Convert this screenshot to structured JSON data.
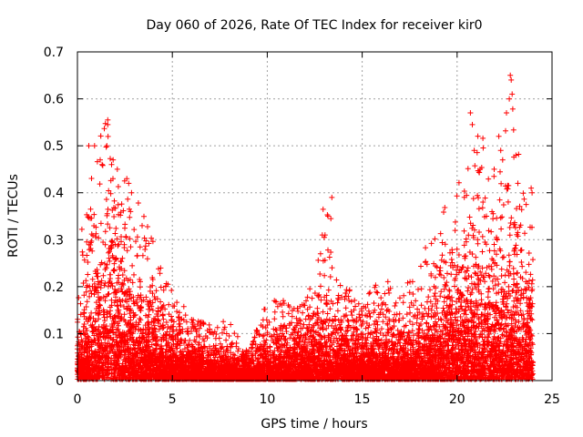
{
  "chart_data": {
    "type": "scatter",
    "title": "Day 060 of 2026, Rate Of TEC Index for receiver kir0",
    "xlabel": "GPS time / hours",
    "ylabel": "ROTI / TECUs",
    "xlim": [
      0,
      25
    ],
    "ylim": [
      0,
      0.7
    ],
    "xticks": [
      0,
      5,
      10,
      15,
      20,
      25
    ],
    "xtick_labels": [
      "0",
      "5",
      "10",
      "15",
      "20",
      "25"
    ],
    "yticks": [
      0,
      0.1,
      0.2,
      0.3,
      0.4,
      0.5,
      0.6,
      0.7
    ],
    "ytick_labels": [
      "0",
      "0.1",
      "0.2",
      "0.3",
      "0.4",
      "0.5",
      "0.6",
      "0.7"
    ],
    "grid": true,
    "marker": "+",
    "color": "#ff0000",
    "x_range_data": [
      0,
      24
    ],
    "envelope": [
      {
        "x": 0.0,
        "typical": 0.05,
        "max": 0.3
      },
      {
        "x": 1.0,
        "typical": 0.1,
        "max": 0.5
      },
      {
        "x": 1.5,
        "typical": 0.15,
        "max": 0.55
      },
      {
        "x": 2.0,
        "typical": 0.14,
        "max": 0.45
      },
      {
        "x": 3.0,
        "typical": 0.1,
        "max": 0.4
      },
      {
        "x": 4.0,
        "typical": 0.07,
        "max": 0.3
      },
      {
        "x": 5.0,
        "typical": 0.05,
        "max": 0.2
      },
      {
        "x": 6.0,
        "typical": 0.04,
        "max": 0.13
      },
      {
        "x": 7.0,
        "typical": 0.03,
        "max": 0.12
      },
      {
        "x": 8.0,
        "typical": 0.025,
        "max": 0.13
      },
      {
        "x": 9.0,
        "typical": 0.02,
        "max": 0.06
      },
      {
        "x": 10.0,
        "typical": 0.04,
        "max": 0.17
      },
      {
        "x": 11.0,
        "typical": 0.05,
        "max": 0.17
      },
      {
        "x": 12.0,
        "typical": 0.05,
        "max": 0.16
      },
      {
        "x": 13.0,
        "typical": 0.06,
        "max": 0.39
      },
      {
        "x": 14.0,
        "typical": 0.06,
        "max": 0.21
      },
      {
        "x": 15.0,
        "typical": 0.05,
        "max": 0.16
      },
      {
        "x": 16.0,
        "typical": 0.05,
        "max": 0.23
      },
      {
        "x": 17.0,
        "typical": 0.05,
        "max": 0.18
      },
      {
        "x": 18.0,
        "typical": 0.06,
        "max": 0.26
      },
      {
        "x": 19.0,
        "typical": 0.08,
        "max": 0.33
      },
      {
        "x": 20.0,
        "typical": 0.11,
        "max": 0.44
      },
      {
        "x": 21.0,
        "typical": 0.13,
        "max": 0.57
      },
      {
        "x": 22.0,
        "typical": 0.13,
        "max": 0.45
      },
      {
        "x": 22.8,
        "typical": 0.14,
        "max": 0.65
      },
      {
        "x": 23.5,
        "typical": 0.12,
        "max": 0.4
      },
      {
        "x": 24.0,
        "typical": 0.1,
        "max": 0.42
      }
    ],
    "outliers": [
      {
        "x": 0.6,
        "y": 0.5
      },
      {
        "x": 0.9,
        "y": 0.5
      },
      {
        "x": 1.6,
        "y": 0.555
      },
      {
        "x": 1.6,
        "y": 0.545
      },
      {
        "x": 1.55,
        "y": 0.5
      },
      {
        "x": 1.2,
        "y": 0.47
      },
      {
        "x": 1.3,
        "y": 0.46
      },
      {
        "x": 1.8,
        "y": 0.46
      },
      {
        "x": 2.1,
        "y": 0.45
      },
      {
        "x": 2.6,
        "y": 0.43
      },
      {
        "x": 2.7,
        "y": 0.42
      },
      {
        "x": 12.9,
        "y": 0.31
      },
      {
        "x": 13.0,
        "y": 0.305
      },
      {
        "x": 12.95,
        "y": 0.255
      },
      {
        "x": 13.4,
        "y": 0.39
      },
      {
        "x": 13.35,
        "y": 0.345
      },
      {
        "x": 20.7,
        "y": 0.57
      },
      {
        "x": 20.8,
        "y": 0.545
      },
      {
        "x": 20.9,
        "y": 0.49
      },
      {
        "x": 22.2,
        "y": 0.52
      },
      {
        "x": 22.3,
        "y": 0.49
      },
      {
        "x": 22.4,
        "y": 0.47
      },
      {
        "x": 22.8,
        "y": 0.65
      },
      {
        "x": 22.85,
        "y": 0.64
      },
      {
        "x": 22.9,
        "y": 0.61
      },
      {
        "x": 22.75,
        "y": 0.6
      },
      {
        "x": 22.6,
        "y": 0.57
      },
      {
        "x": 23.1,
        "y": 0.48
      },
      {
        "x": 23.2,
        "y": 0.42
      },
      {
        "x": 23.9,
        "y": 0.41
      },
      {
        "x": 23.95,
        "y": 0.4
      }
    ]
  }
}
